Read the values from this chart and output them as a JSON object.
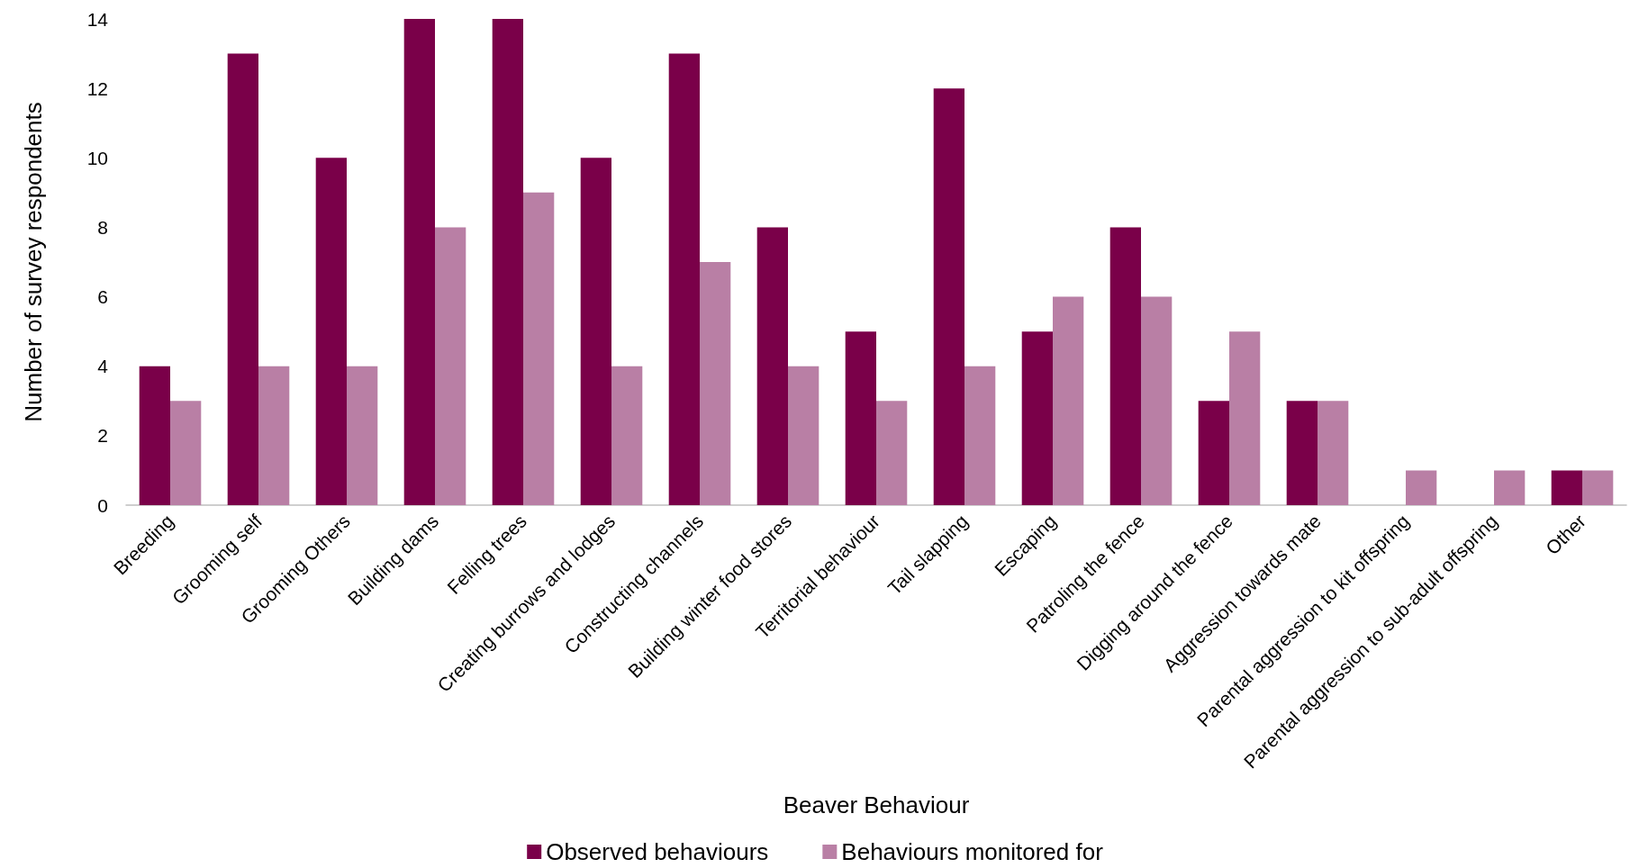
{
  "chart_data": {
    "type": "bar",
    "xlabel": "Beaver Behaviour",
    "ylabel": "Number of survey respondents",
    "categories": [
      "Breeding",
      "Grooming self",
      "Grooming Others",
      "Building dams",
      "Felling trees",
      "Creating burrows and lodges",
      "Constructing channels",
      "Building winter food stores",
      "Territorial behaviour",
      "Tail slapping",
      "Escaping",
      "Patroling the fence",
      "Digging around the fence",
      "Aggression towards mate",
      "Parental aggression to kit offspring",
      "Parental aggression to sub-adult offspring",
      "Other"
    ],
    "series": [
      {
        "name": "Observed behaviours",
        "color": "#7a0049",
        "values": [
          4,
          13,
          10,
          14,
          14,
          10,
          13,
          8,
          5,
          12,
          5,
          8,
          3,
          3,
          0,
          0,
          1
        ]
      },
      {
        "name": "Behaviours monitored for",
        "color": "#b97fa5",
        "values": [
          3,
          4,
          4,
          8,
          9,
          4,
          7,
          4,
          3,
          4,
          6,
          6,
          5,
          3,
          1,
          1,
          1
        ]
      }
    ],
    "ylim": [
      0,
      14
    ],
    "yticks": [
      0,
      2,
      4,
      6,
      8,
      10,
      12,
      14
    ],
    "grid": false,
    "legend": "bottom"
  }
}
